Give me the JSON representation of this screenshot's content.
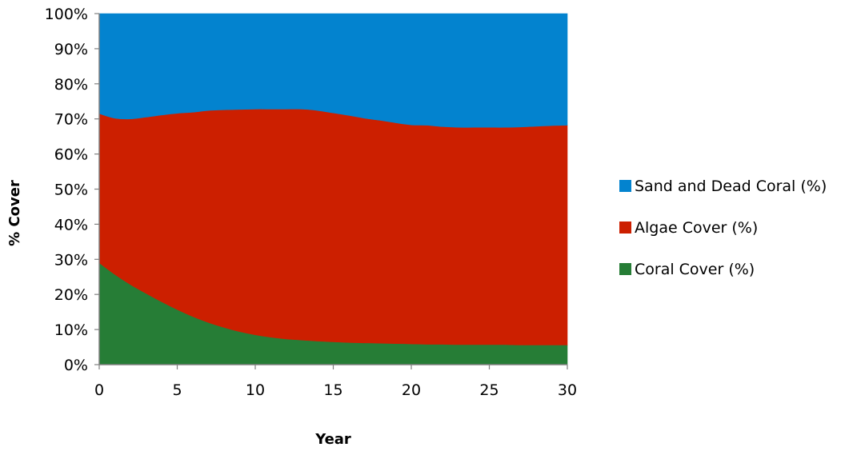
{
  "chart_data": {
    "type": "area",
    "stacked": true,
    "percent_stacked": true,
    "xlabel": "Year",
    "ylabel": "% Cover",
    "xlim": [
      0,
      30
    ],
    "ylim": [
      0,
      100
    ],
    "x_ticks": [
      "0",
      "5",
      "10",
      "15",
      "20",
      "25",
      "30"
    ],
    "y_ticks": [
      "0%",
      "10%",
      "20%",
      "30%",
      "40%",
      "50%",
      "60%",
      "70%",
      "80%",
      "90%",
      "100%"
    ],
    "grid": false,
    "legend_position": "right",
    "x": [
      0,
      1,
      2,
      3,
      4,
      5,
      6,
      7,
      8,
      9,
      10,
      11,
      12,
      13,
      14,
      15,
      16,
      17,
      18,
      19,
      20,
      21,
      22,
      23,
      24,
      25,
      26,
      27,
      28,
      29,
      30
    ],
    "series": [
      {
        "name": "Coral Cover (%)",
        "color": "#267d36",
        "values": [
          29.0,
          25.7,
          22.8,
          20.3,
          17.9,
          15.7,
          13.7,
          12.0,
          10.6,
          9.4,
          8.5,
          7.8,
          7.3,
          7.0,
          6.7,
          6.5,
          6.3,
          6.2,
          6.1,
          6.0,
          5.9,
          5.8,
          5.8,
          5.7,
          5.7,
          5.7,
          5.7,
          5.6,
          5.6,
          5.6,
          5.6
        ]
      },
      {
        "name": "Algae Cover (%)",
        "color": "#cc1f00",
        "values": [
          42.5,
          44.5,
          47.2,
          50.2,
          53.2,
          55.9,
          58.2,
          60.4,
          62.0,
          63.3,
          64.3,
          65.0,
          65.5,
          65.8,
          65.7,
          65.2,
          64.7,
          64.0,
          63.5,
          62.9,
          62.4,
          62.4,
          62.0,
          61.9,
          61.9,
          61.9,
          61.9,
          62.1,
          62.3,
          62.5,
          62.6
        ]
      },
      {
        "name": "Sand and Dead Coral (%)",
        "color": "#0383cf",
        "values": [
          28.5,
          29.8,
          30.0,
          29.5,
          28.9,
          28.4,
          28.1,
          27.6,
          27.4,
          27.3,
          27.2,
          27.2,
          27.2,
          27.2,
          27.6,
          28.3,
          29.0,
          29.8,
          30.4,
          31.1,
          31.7,
          31.8,
          32.2,
          32.4,
          32.4,
          32.4,
          32.4,
          32.3,
          32.1,
          31.9,
          31.8
        ]
      }
    ],
    "legend_order": [
      "Sand and Dead Coral (%)",
      "Algae Cover (%)",
      "Coral Cover (%)"
    ]
  }
}
